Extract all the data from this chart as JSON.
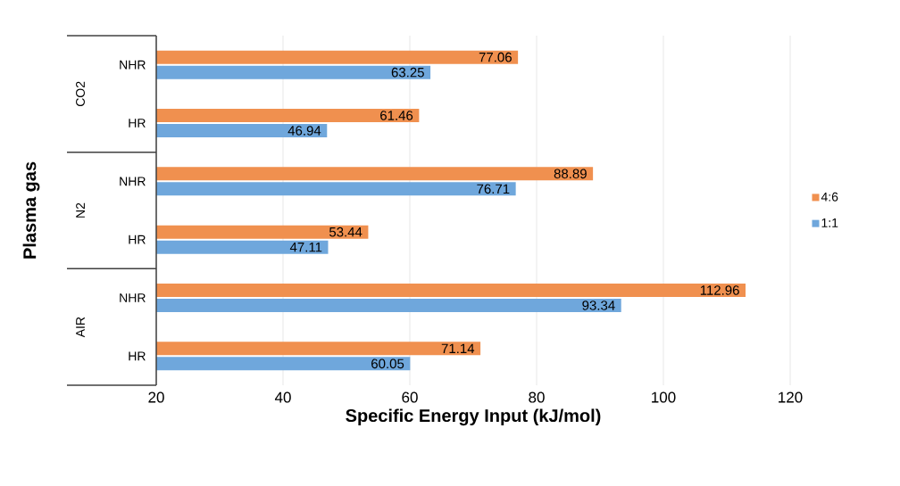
{
  "chart_data": {
    "type": "bar",
    "orientation": "horizontal",
    "xlabel": "Specific Energy Input (kJ/mol)",
    "ylabel": "Plasma gas",
    "categories": [
      "NHR",
      "HR",
      "NHR",
      "HR",
      "NHR",
      "HR"
    ],
    "annotations": [
      "CO2",
      "N2",
      "AIR"
    ],
    "series": [
      {
        "name": "4:6",
        "color": "#f0904f",
        "values": [
          77.06,
          61.46,
          88.89,
          53.44,
          112.96,
          71.14
        ]
      },
      {
        "name": "1:1",
        "color": "#6fa7dc",
        "values": [
          63.25,
          46.94,
          76.71,
          47.11,
          93.34,
          60.05
        ]
      }
    ],
    "xlim": [
      20,
      120
    ],
    "xticks": [
      20,
      40,
      60,
      80,
      100,
      120
    ],
    "grid": "x",
    "legend": "right",
    "data_labels": true
  }
}
